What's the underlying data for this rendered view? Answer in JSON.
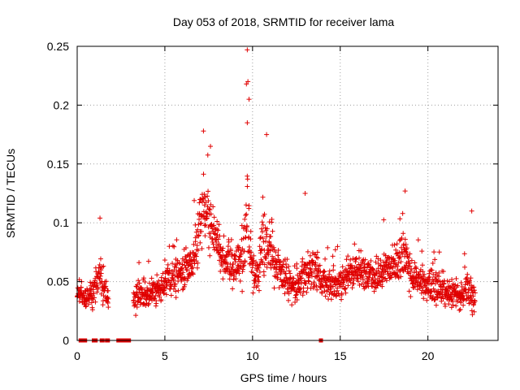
{
  "chart_data": {
    "type": "scatter",
    "title": "Day 053 of 2018, SRMTID for receiver lama",
    "xlabel": "GPS time / hours",
    "ylabel": "SRMTID / TECUs",
    "xlim": [
      0,
      24
    ],
    "ylim": [
      0,
      0.25
    ],
    "x_ticks": [
      0,
      5,
      10,
      15,
      20
    ],
    "x_tick_labels": [
      "0",
      "5",
      "10",
      "15",
      "20"
    ],
    "y_ticks": [
      0,
      0.05,
      0.1,
      0.15,
      0.2,
      0.25
    ],
    "y_tick_labels": [
      "0",
      "0.05",
      "0.1",
      "0.15",
      "0.2",
      "0.25"
    ],
    "grid": true,
    "marker": "plus",
    "color": "#e00000",
    "series": [
      {
        "name": "SRMTID",
        "envelope": {
          "x": [
            0.0,
            0.3,
            0.5,
            0.8,
            1.0,
            1.3,
            1.5,
            1.8,
            2.0,
            2.5,
            2.9,
            3.2,
            3.6,
            4.0,
            4.5,
            5.0,
            5.5,
            6.0,
            6.5,
            6.8,
            7.0,
            7.2,
            7.5,
            7.8,
            8.0,
            8.5,
            9.0,
            9.5,
            9.7,
            10.0,
            10.3,
            10.6,
            10.8,
            11.0,
            11.5,
            12.0,
            12.5,
            13.0,
            13.5,
            14.0,
            14.5,
            15.0,
            15.5,
            16.0,
            16.5,
            17.0,
            17.5,
            18.0,
            18.5,
            18.7,
            19.0,
            19.5,
            20.0,
            20.5,
            21.0,
            21.5,
            22.0,
            22.3,
            22.7
          ],
          "mean": [
            0.042,
            0.038,
            0.035,
            0.04,
            0.045,
            0.055,
            0.045,
            0.035,
            null,
            null,
            null,
            0.035,
            0.038,
            0.04,
            0.042,
            0.05,
            0.055,
            0.06,
            0.065,
            0.08,
            0.105,
            0.11,
            0.1,
            0.09,
            0.08,
            0.065,
            0.06,
            0.075,
            0.1,
            0.06,
            0.055,
            0.085,
            0.08,
            0.075,
            0.06,
            0.05,
            0.048,
            0.055,
            0.06,
            0.05,
            0.045,
            0.05,
            0.055,
            0.06,
            0.055,
            0.052,
            0.058,
            0.062,
            0.07,
            0.075,
            0.055,
            0.05,
            0.048,
            0.045,
            0.042,
            0.04,
            0.04,
            0.045,
            0.035
          ],
          "spread": [
            0.01,
            0.01,
            0.012,
            0.012,
            0.015,
            0.025,
            0.015,
            0.01,
            null,
            null,
            null,
            0.012,
            0.014,
            0.014,
            0.014,
            0.015,
            0.016,
            0.018,
            0.02,
            0.03,
            0.035,
            0.035,
            0.03,
            0.025,
            0.022,
            0.02,
            0.02,
            0.03,
            0.06,
            0.025,
            0.02,
            0.04,
            0.03,
            0.025,
            0.02,
            0.016,
            0.016,
            0.018,
            0.02,
            0.016,
            0.015,
            0.016,
            0.016,
            0.018,
            0.016,
            0.016,
            0.016,
            0.018,
            0.022,
            0.025,
            0.016,
            0.015,
            0.015,
            0.015,
            0.015,
            0.015,
            0.018,
            0.022,
            0.012
          ]
        },
        "notable_points": [
          {
            "x": 9.7,
            "y": 0.247
          },
          {
            "x": 9.65,
            "y": 0.218
          },
          {
            "x": 9.8,
            "y": 0.205
          },
          {
            "x": 9.7,
            "y": 0.185
          },
          {
            "x": 10.8,
            "y": 0.175
          },
          {
            "x": 7.2,
            "y": 0.178
          },
          {
            "x": 7.6,
            "y": 0.165
          },
          {
            "x": 1.3,
            "y": 0.104
          },
          {
            "x": 22.5,
            "y": 0.11
          },
          {
            "x": 18.7,
            "y": 0.127
          },
          {
            "x": 13.0,
            "y": 0.125
          }
        ]
      }
    ],
    "zero_markers_x": [
      0.2,
      0.25,
      0.3,
      0.35,
      0.4,
      0.45,
      0.95,
      1.0,
      1.05,
      1.4,
      1.45,
      1.7,
      1.75,
      2.35,
      2.4,
      2.45,
      2.5,
      2.55,
      2.6,
      2.65,
      2.7,
      2.75,
      2.8,
      2.85,
      2.9,
      2.95,
      13.9
    ]
  }
}
